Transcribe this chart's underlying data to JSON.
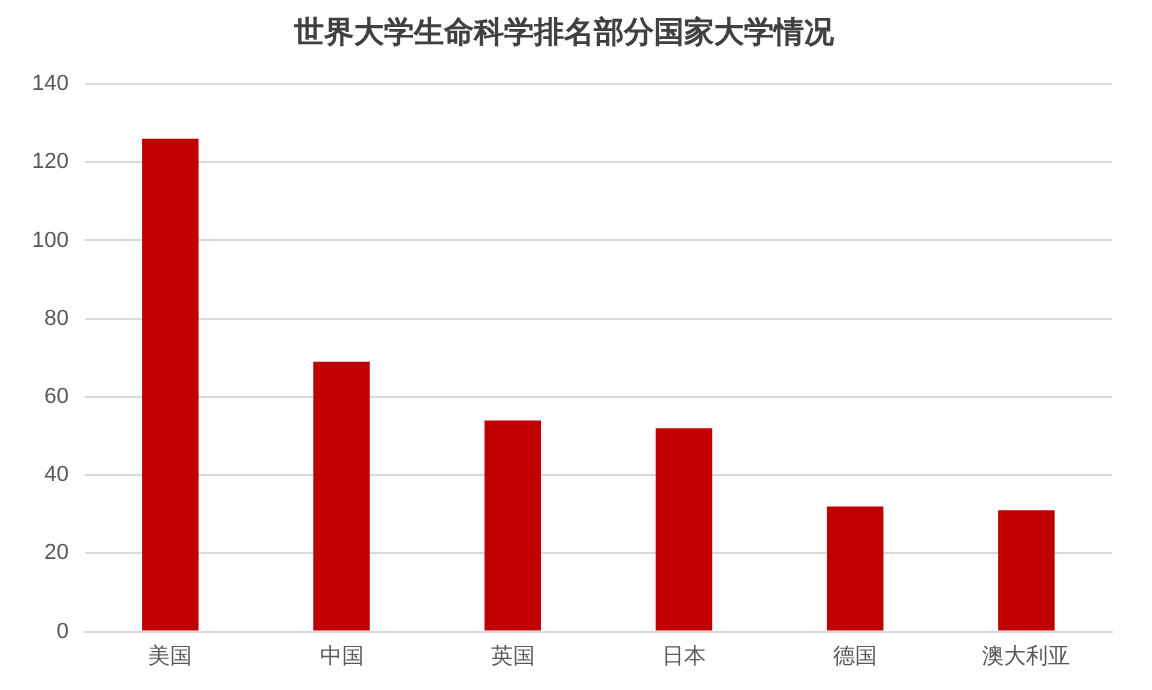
{
  "chart_data": {
    "type": "bar",
    "title": "世界大学生命科学排名部分国家大学情况",
    "categories": [
      "美国",
      "中国",
      "英国",
      "日本",
      "德国",
      "澳大利亚"
    ],
    "values": [
      126,
      69,
      54,
      52,
      32,
      31
    ],
    "color": "#c00000",
    "ylim": [
      0,
      140
    ],
    "yticks": [
      0,
      20,
      40,
      60,
      80,
      100,
      120,
      140
    ],
    "grid": "y"
  }
}
